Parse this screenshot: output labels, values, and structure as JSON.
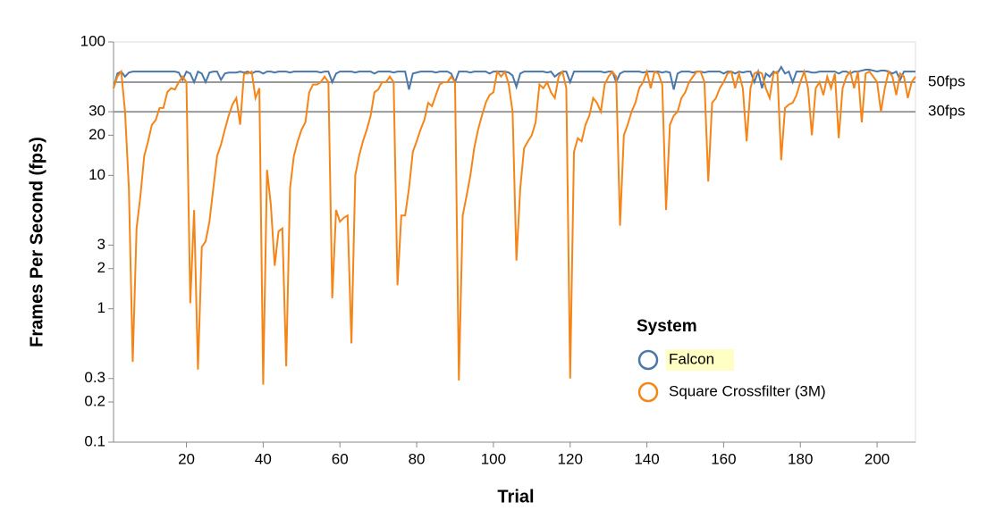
{
  "chart_data": {
    "type": "line",
    "x_label": "Trial",
    "y_label": "Frames Per Second (fps)",
    "legend_title": "System",
    "legend_position": "bottom-right",
    "log_y": true,
    "xlim": [
      1,
      210
    ],
    "ylim": [
      0.1,
      100
    ],
    "xticks": [
      20,
      40,
      60,
      80,
      100,
      120,
      140,
      160,
      180,
      200
    ],
    "yticks": [
      0.1,
      0.2,
      0.3,
      1,
      2,
      3,
      10,
      20,
      30,
      100
    ],
    "annotations": [
      {
        "value": 50,
        "label": "50fps"
      },
      {
        "value": 30,
        "label": "30fps"
      }
    ],
    "x": [
      1,
      2,
      3,
      4,
      5,
      6,
      7,
      8,
      9,
      10,
      11,
      12,
      13,
      14,
      15,
      16,
      17,
      18,
      19,
      20,
      21,
      22,
      23,
      24,
      25,
      26,
      27,
      28,
      29,
      30,
      31,
      32,
      33,
      34,
      35,
      36,
      37,
      38,
      39,
      40,
      41,
      42,
      43,
      44,
      45,
      46,
      47,
      48,
      49,
      50,
      51,
      52,
      53,
      54,
      55,
      56,
      57,
      58,
      59,
      60,
      61,
      62,
      63,
      64,
      65,
      66,
      67,
      68,
      69,
      70,
      71,
      72,
      73,
      74,
      75,
      76,
      77,
      78,
      79,
      80,
      81,
      82,
      83,
      84,
      85,
      86,
      87,
      88,
      89,
      90,
      91,
      92,
      93,
      94,
      95,
      96,
      97,
      98,
      99,
      100,
      101,
      102,
      103,
      104,
      105,
      106,
      107,
      108,
      109,
      110,
      111,
      112,
      113,
      114,
      115,
      116,
      117,
      118,
      119,
      120,
      121,
      122,
      123,
      124,
      125,
      126,
      127,
      128,
      129,
      130,
      131,
      132,
      133,
      134,
      135,
      136,
      137,
      138,
      139,
      140,
      141,
      142,
      143,
      144,
      145,
      146,
      147,
      148,
      149,
      150,
      151,
      152,
      153,
      154,
      155,
      156,
      157,
      158,
      159,
      160,
      161,
      162,
      163,
      164,
      165,
      166,
      167,
      168,
      169,
      170,
      171,
      172,
      173,
      174,
      175,
      176,
      177,
      178,
      179,
      180,
      181,
      182,
      183,
      184,
      185,
      186,
      187,
      188,
      189,
      190,
      191,
      192,
      193,
      194,
      195,
      196,
      197,
      198,
      199,
      200,
      201,
      202,
      203,
      204,
      205,
      206,
      207,
      208,
      209,
      210
    ],
    "series": [
      {
        "name": "Falcon",
        "color": "#4c78a8",
        "values": [
          45,
          58,
          60,
          55,
          59,
          60,
          60,
          60,
          60,
          60,
          60,
          60,
          60,
          60,
          60,
          60,
          60,
          59,
          52,
          60,
          58,
          50,
          60,
          58,
          50,
          59,
          60,
          60,
          52,
          58,
          59,
          59,
          59,
          60,
          59,
          60,
          58,
          60,
          60,
          58,
          60,
          60,
          59,
          60,
          60,
          60,
          59,
          60,
          60,
          60,
          60,
          60,
          60,
          60,
          59,
          60,
          60,
          50,
          58,
          60,
          60,
          60,
          60,
          59,
          60,
          60,
          60,
          60,
          58,
          60,
          60,
          60,
          60,
          59,
          60,
          60,
          60,
          44,
          58,
          59,
          60,
          60,
          60,
          60,
          59,
          60,
          60,
          60,
          58,
          50,
          60,
          60,
          60,
          59,
          60,
          60,
          60,
          60,
          58,
          60,
          60,
          60,
          60,
          59,
          56,
          46,
          58,
          60,
          60,
          60,
          60,
          60,
          60,
          59,
          60,
          55,
          58,
          60,
          60,
          50,
          60,
          60,
          60,
          60,
          60,
          60,
          60,
          60,
          59,
          60,
          60,
          50,
          58,
          60,
          60,
          60,
          60,
          60,
          59,
          60,
          60,
          60,
          60,
          59,
          60,
          59,
          44,
          58,
          60,
          60,
          60,
          59,
          60,
          60,
          59,
          60,
          60,
          60,
          60,
          58,
          60,
          60,
          58,
          60,
          59,
          60,
          60,
          50,
          60,
          45,
          58,
          55,
          60,
          58,
          65,
          58,
          60,
          50,
          60,
          60,
          60,
          60,
          59,
          59,
          60,
          60,
          60,
          60,
          60,
          58,
          60,
          60,
          58,
          60,
          60,
          61,
          62,
          62,
          61,
          60,
          61,
          61,
          60,
          58,
          60,
          52,
          60,
          60,
          60,
          60
        ]
      },
      {
        "name": "Square Crossfilter (3M)",
        "color": "#f58518",
        "values": [
          45,
          55,
          60,
          30,
          8,
          0.4,
          4,
          7,
          14,
          18,
          24,
          26,
          32,
          32,
          42,
          45,
          44,
          50,
          55,
          50,
          1.1,
          5.5,
          0.35,
          2.9,
          3.2,
          4.5,
          8,
          14,
          17,
          22,
          28,
          34,
          38,
          24,
          58,
          58,
          60,
          38,
          45,
          0.27,
          11,
          6,
          2.1,
          3.8,
          4,
          0.37,
          8,
          14,
          18,
          22,
          25,
          42,
          48,
          48,
          50,
          55,
          50,
          1.2,
          5.5,
          4.5,
          4.8,
          5,
          0.55,
          10,
          14,
          18,
          22,
          28,
          42,
          44,
          50,
          50,
          55,
          50,
          1.5,
          5,
          5,
          8,
          15,
          18,
          22,
          26,
          35,
          33,
          40,
          48,
          50,
          50,
          55,
          50,
          0.29,
          5,
          7,
          10,
          16,
          22,
          28,
          35,
          40,
          42,
          60,
          55,
          60,
          48,
          30,
          2.3,
          8,
          16,
          18,
          20,
          25,
          48,
          45,
          50,
          42,
          38,
          55,
          60,
          45,
          0.3,
          15,
          19,
          18,
          24,
          28,
          38,
          35,
          30,
          48,
          55,
          60,
          55,
          4.2,
          20,
          24,
          30,
          35,
          45,
          50,
          60,
          45,
          60,
          58,
          48,
          5.5,
          24,
          28,
          30,
          38,
          42,
          50,
          55,
          60,
          60,
          50,
          9,
          35,
          38,
          45,
          50,
          58,
          60,
          45,
          58,
          45,
          18,
          45,
          58,
          60,
          58,
          45,
          38,
          58,
          60,
          13,
          32,
          34,
          35,
          40,
          50,
          60,
          45,
          20,
          45,
          50,
          40,
          55,
          45,
          58,
          19,
          45,
          55,
          60,
          45,
          60,
          25,
          58,
          60,
          55,
          50,
          30,
          45,
          60,
          55,
          40,
          58,
          55,
          38,
          50,
          55
        ]
      }
    ]
  }
}
